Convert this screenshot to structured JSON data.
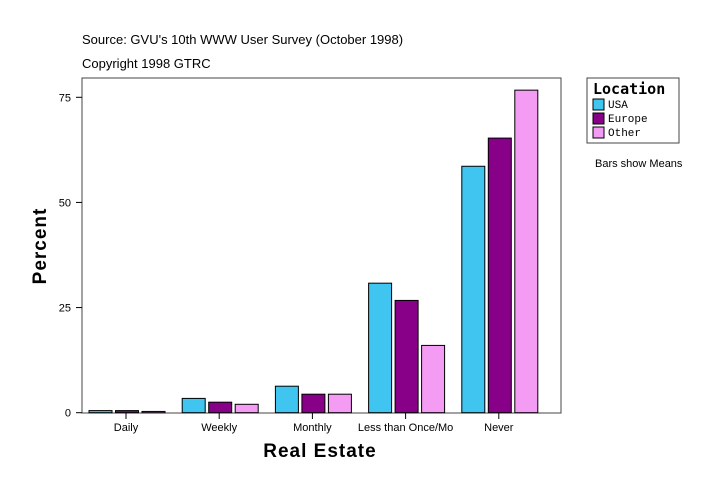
{
  "header": {
    "source": "Source: GVU's 10th WWW User Survey (October 1998)",
    "copyright": "Copyright 1998 GTRC"
  },
  "note": "Bars show Means",
  "chart_data": {
    "type": "bar",
    "title": "",
    "xlabel": "Real Estate",
    "ylabel": "Percent",
    "ylim": [
      0,
      80
    ],
    "yticks": [
      0,
      25,
      50,
      75
    ],
    "grid": false,
    "legend_title": "Location",
    "legend_position": "right",
    "categories": [
      "Daily",
      "Weekly",
      "Monthly",
      "Less than Once/Mo",
      "Never"
    ],
    "series": [
      {
        "name": "USA",
        "color": "#40c4f0",
        "values": [
          0.5,
          3.4,
          6.3,
          30.8,
          58.6
        ]
      },
      {
        "name": "Europe",
        "color": "#880088",
        "values": [
          0.5,
          2.5,
          4.4,
          26.7,
          65.3
        ]
      },
      {
        "name": "Other",
        "color": "#f49cf4",
        "values": [
          0.3,
          2.0,
          4.4,
          16.0,
          76.7
        ]
      }
    ]
  }
}
